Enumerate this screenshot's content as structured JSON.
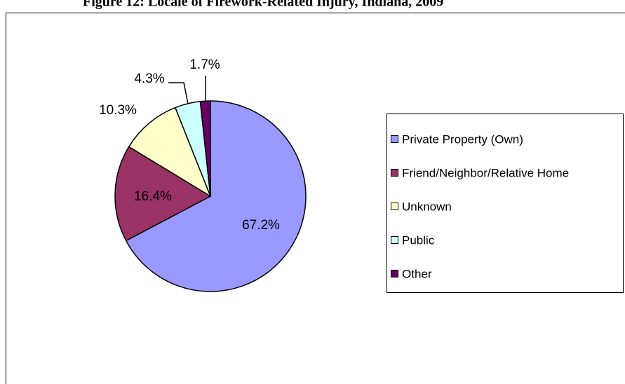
{
  "chart_data": {
    "type": "pie",
    "title": "Figure 12: Locale of Firework-Related Injury, Indiana, 2009",
    "categories": [
      "Private Property (Own)",
      "Friend/Neighbor/Relative Home",
      "Unknown",
      "Public",
      "Other"
    ],
    "values": [
      67.2,
      16.4,
      10.3,
      4.3,
      1.7
    ],
    "value_labels": [
      "67.2%",
      "16.4%",
      "10.3%",
      "4.3%",
      "1.7%"
    ],
    "colors": [
      "#9999ff",
      "#993366",
      "#ffffcc",
      "#ccffff",
      "#660066"
    ],
    "legend": "right"
  }
}
